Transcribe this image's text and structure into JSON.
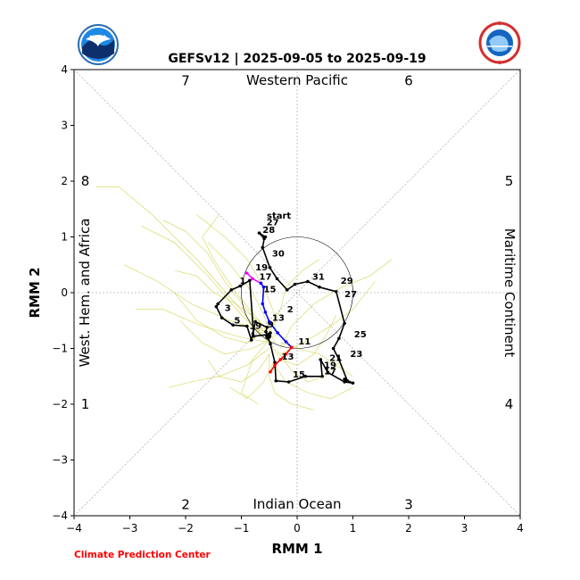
{
  "chart_data": {
    "type": "line",
    "title": "GEFSv12 | 2025-09-05 to 2025-09-19",
    "xlabel": "RMM 1",
    "ylabel": "RMM 2",
    "xlim": [
      -4,
      4
    ],
    "ylim": [
      -4,
      4
    ],
    "xticks": [
      "−4",
      "−3",
      "−2",
      "−1",
      "0",
      "1",
      "2",
      "3",
      "4"
    ],
    "yticks": [
      "−4",
      "−3",
      "−2",
      "−1",
      "0",
      "1",
      "2",
      "3",
      "4"
    ],
    "grid": false,
    "regions": {
      "top": "Western Pacific",
      "bottom": "Indian Ocean",
      "left": "West. Hem. and Africa",
      "right": "Maritime Continent"
    },
    "phases": [
      {
        "label": "1",
        "x": -3.8,
        "y": -2
      },
      {
        "label": "2",
        "x": -2,
        "y": -3.8
      },
      {
        "label": "3",
        "x": 2,
        "y": -3.8
      },
      {
        "label": "4",
        "x": 3.8,
        "y": -2
      },
      {
        "label": "5",
        "x": 3.8,
        "y": 2
      },
      {
        "label": "6",
        "x": 2,
        "y": 3.8
      },
      {
        "label": "7",
        "x": -2,
        "y": 3.8
      },
      {
        "label": "8",
        "x": -3.8,
        "y": 2
      }
    ],
    "start_label": "start",
    "credit": "Climate Prediction Center",
    "colors": {
      "observed": "#000000",
      "magenta": "#ff00ff",
      "blue": "#0000ff",
      "red": "#ff0000",
      "members": "#cccc33",
      "guides": "#999999"
    },
    "observed": {
      "x": [
        -0.57,
        -0.68,
        -0.59,
        -0.62,
        -0.49,
        -0.36,
        -0.18,
        -0.04,
        0.19,
        0.4,
        0.7,
        0.85,
        0.75,
        0.65,
        0.75,
        0.9,
        0.85,
        1.0,
        0.85,
        0.55,
        0.42,
        0.45,
        0.15,
        -0.15,
        -0.38,
        -0.4,
        -0.48,
        -0.56,
        -0.54,
        -0.75,
        -0.82,
        -0.9,
        -1.15,
        -1.35,
        -1.45,
        -1.42,
        -1.18,
        -1.02,
        -0.85,
        -0.78,
        -0.52,
        -0.48,
        -0.52
      ],
      "y": [
        1.0,
        1.07,
        0.97,
        0.81,
        0.45,
        0.25,
        0.05,
        0.15,
        0.2,
        0.1,
        0.02,
        -0.55,
        -0.82,
        -1.0,
        -1.2,
        -1.58,
        -1.55,
        -1.62,
        -1.6,
        -1.43,
        -1.2,
        -1.5,
        -1.5,
        -1.6,
        -1.58,
        -1.25,
        -0.92,
        -0.7,
        -0.62,
        -0.52,
        -0.85,
        -0.6,
        -0.58,
        -0.45,
        -0.25,
        -0.2,
        0.05,
        0.12,
        0.22,
        -0.78,
        -0.75,
        -0.72,
        -0.78
      ],
      "labels": [
        {
          "text": "27",
          "x": -0.55,
          "y": 1.21
        },
        {
          "text": "28",
          "x": -0.62,
          "y": 1.07
        },
        {
          "text": "30",
          "x": -0.45,
          "y": 0.65
        },
        {
          "text": "31",
          "x": 0.27,
          "y": 0.23
        },
        {
          "text": "29",
          "x": 0.78,
          "y": 0.16
        },
        {
          "text": "27",
          "x": 0.85,
          "y": -0.08
        },
        {
          "text": "25",
          "x": 1.02,
          "y": -0.8
        },
        {
          "text": "23",
          "x": 0.95,
          "y": -1.15
        },
        {
          "text": "21",
          "x": 0.58,
          "y": -1.22
        },
        {
          "text": "19",
          "x": 0.48,
          "y": -1.35
        },
        {
          "text": "17",
          "x": 0.48,
          "y": -1.46
        },
        {
          "text": "15",
          "x": -0.08,
          "y": -1.52
        },
        {
          "text": "13",
          "x": -0.28,
          "y": -1.2
        },
        {
          "text": "11",
          "x": 0.02,
          "y": -0.93
        },
        {
          "text": "9",
          "x": -0.75,
          "y": -0.65
        },
        {
          "text": "7",
          "x": -0.85,
          "y": -0.74
        },
        {
          "text": "5",
          "x": -1.13,
          "y": -0.55
        },
        {
          "text": "3",
          "x": -1.3,
          "y": -0.33
        },
        {
          "text": "1",
          "x": -1.03,
          "y": 0.16
        },
        {
          "text": "2",
          "x": -0.18,
          "y": -0.35
        },
        {
          "text": "19",
          "x": -0.75,
          "y": 0.4
        }
      ]
    },
    "forecast_segments": [
      {
        "color": "magenta",
        "x": [
          -0.9,
          -0.8,
          -0.65
        ],
        "y": [
          0.35,
          0.25,
          0.17
        ]
      },
      {
        "color": "blue",
        "x": [
          -0.65,
          -0.6,
          -0.62,
          -0.57,
          -0.5,
          -0.35,
          -0.2,
          -0.1
        ],
        "y": [
          0.17,
          0.1,
          -0.2,
          -0.35,
          -0.52,
          -0.72,
          -0.88,
          -0.98
        ]
      },
      {
        "color": "red",
        "x": [
          -0.1,
          -0.2,
          -0.3,
          -0.4,
          -0.48
        ],
        "y": [
          -0.98,
          -1.1,
          -1.2,
          -1.3,
          -1.42
        ]
      }
    ],
    "forecast_labels": [
      {
        "text": "17",
        "x": -0.68,
        "y": 0.23
      },
      {
        "text": "15",
        "x": -0.6,
        "y": 0.01
      },
      {
        "text": "13",
        "x": -0.45,
        "y": -0.5
      },
      {
        "text": "9",
        "x": -0.53,
        "y": -0.62
      }
    ],
    "members": [
      {
        "x": [
          -0.6,
          -1.1,
          -1.8,
          -2.6,
          -3.2,
          -3.6
        ],
        "y": [
          -0.8,
          -0.2,
          0.6,
          1.4,
          1.9,
          1.9
        ]
      },
      {
        "x": [
          -0.5,
          -1.0,
          -1.6,
          -2.2,
          -2.8
        ],
        "y": [
          -0.9,
          -0.4,
          0.3,
          0.9,
          1.2
        ]
      },
      {
        "x": [
          -0.55,
          -1.2,
          -1.9,
          -2.5,
          -3.1
        ],
        "y": [
          -0.7,
          -0.5,
          -0.2,
          0.2,
          0.5
        ]
      },
      {
        "x": [
          -0.45,
          -1.0,
          -1.7,
          -2.4,
          -2.9
        ],
        "y": [
          -0.9,
          -0.8,
          -0.6,
          -0.3,
          -0.3
        ]
      },
      {
        "x": [
          -0.5,
          -0.9,
          -1.4,
          -1.9,
          -2.3
        ],
        "y": [
          -1.0,
          -1.3,
          -1.5,
          -1.6,
          -1.7
        ]
      },
      {
        "x": [
          -0.4,
          -0.6,
          -0.9,
          -1.2
        ],
        "y": [
          -1.2,
          -1.6,
          -1.9,
          -1.7
        ]
      },
      {
        "x": [
          -0.3,
          -0.1,
          0.3,
          0.8,
          1.3,
          1.7
        ],
        "y": [
          -1.0,
          -0.6,
          -0.2,
          0.1,
          0.3,
          0.6
        ]
      },
      {
        "x": [
          -0.3,
          0.1,
          0.6,
          1.0,
          1.4
        ],
        "y": [
          -1.1,
          -0.9,
          -0.6,
          -0.3,
          0.2
        ]
      },
      {
        "x": [
          -0.4,
          -0.2,
          0.2,
          0.6,
          1.0
        ],
        "y": [
          -1.3,
          -1.6,
          -1.8,
          -1.9,
          -1.7
        ]
      },
      {
        "x": [
          -0.5,
          -0.5,
          -0.4,
          -0.1,
          0.3
        ],
        "y": [
          -1.1,
          -1.5,
          -1.8,
          -2.0,
          -2.1
        ]
      },
      {
        "x": [
          -0.6,
          -1.1,
          -1.5,
          -1.7,
          -1.4
        ],
        "y": [
          -0.6,
          0.0,
          0.6,
          1.0,
          1.4
        ]
      },
      {
        "x": [
          -0.55,
          -0.9,
          -1.3,
          -1.6,
          -2.0,
          -2.4
        ],
        "y": [
          -0.75,
          -0.3,
          0.2,
          0.7,
          1.1,
          1.3
        ]
      },
      {
        "x": [
          -0.4,
          -0.6,
          -0.8,
          -1.2,
          -1.6
        ],
        "y": [
          -0.9,
          -0.4,
          0.0,
          0.5,
          0.9
        ]
      },
      {
        "x": [
          -0.35,
          -0.1,
          0.2,
          0.5,
          0.8
        ],
        "y": [
          -1.05,
          -1.4,
          -1.6,
          -1.5,
          -1.2
        ]
      },
      {
        "x": [
          -0.5,
          -0.8,
          -1.3,
          -1.7,
          -2.1
        ],
        "y": [
          -0.85,
          -1.0,
          -1.1,
          -0.9,
          -0.5
        ]
      },
      {
        "x": [
          -0.45,
          -0.3,
          0.0,
          0.3,
          0.5,
          0.7
        ],
        "y": [
          -0.95,
          -1.2,
          -1.3,
          -1.1,
          -0.8,
          -0.4
        ]
      },
      {
        "x": [
          -0.5,
          -0.7,
          -1.0,
          -1.4,
          -1.6
        ],
        "y": [
          -1.1,
          -1.4,
          -1.6,
          -1.5,
          -1.2
        ]
      },
      {
        "x": [
          -0.6,
          -0.9,
          -1.3,
          -1.8,
          -2.2
        ],
        "y": [
          -0.7,
          -0.9,
          -0.8,
          -0.5,
          0.0
        ]
      },
      {
        "x": [
          -0.4,
          -0.4,
          -0.6,
          -0.9,
          -1.3,
          -1.8
        ],
        "y": [
          -0.8,
          -0.4,
          0.1,
          0.6,
          1.0,
          1.4
        ]
      },
      {
        "x": [
          -0.3,
          0.0,
          0.4,
          0.7,
          1.0
        ],
        "y": [
          -0.9,
          -1.0,
          -1.1,
          -1.3,
          -1.5
        ]
      },
      {
        "x": [
          -0.55,
          -0.8,
          -0.9,
          -1.0,
          -0.7
        ],
        "y": [
          -0.9,
          -1.2,
          -1.5,
          -1.8,
          -2.0
        ]
      },
      {
        "x": [
          -0.5,
          -0.3,
          -0.2,
          0.1,
          0.4
        ],
        "y": [
          -0.7,
          -0.3,
          0.1,
          0.4,
          0.6
        ]
      },
      {
        "x": [
          -0.45,
          -0.7,
          -1.1,
          -1.5,
          -1.8,
          -2.2
        ],
        "y": [
          -0.8,
          -0.5,
          -0.2,
          0.0,
          0.3,
          0.4
        ]
      }
    ]
  }
}
